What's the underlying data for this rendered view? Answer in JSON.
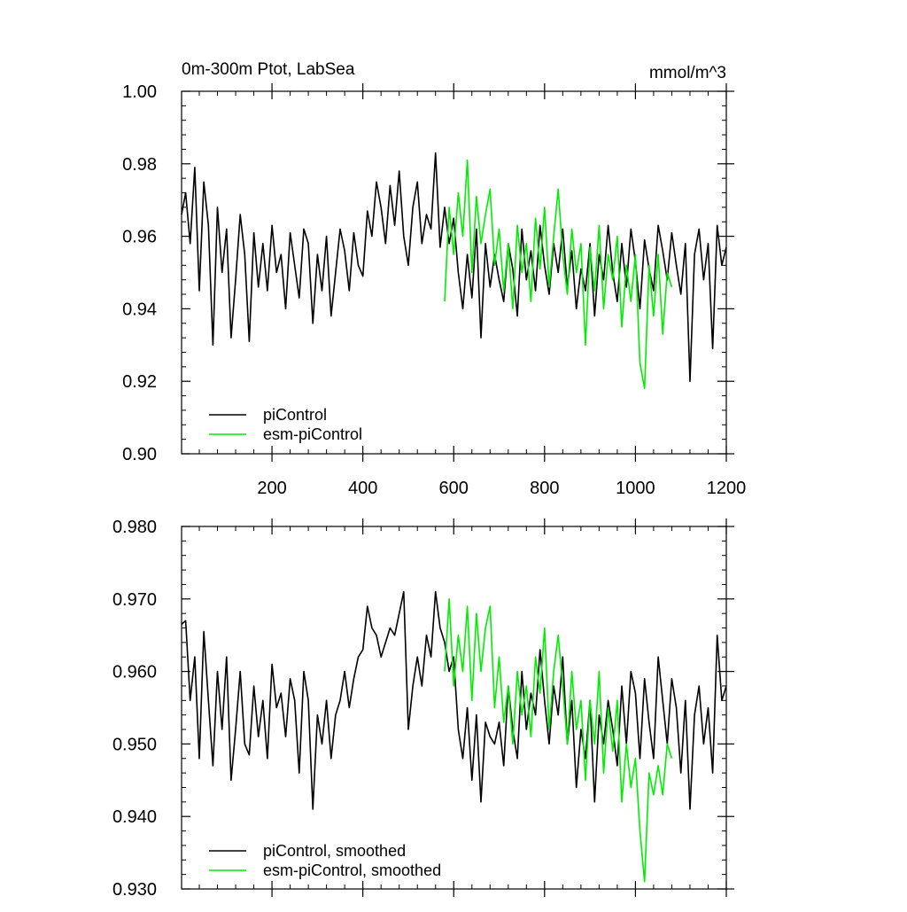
{
  "chart_data": [
    {
      "type": "line",
      "title": "0m-300m Ptot, LabSea",
      "units": "mmol/m^3",
      "xlabel": "",
      "ylabel": "",
      "xlim": [
        1,
        1200
      ],
      "ylim": [
        0.9,
        1.0
      ],
      "x_tick_labels": [
        "200",
        "400",
        "600",
        "800",
        "1000",
        "1200"
      ],
      "x_ticks": [
        200,
        400,
        600,
        800,
        1000,
        1200
      ],
      "y_ticks": [
        0.9,
        0.92,
        0.94,
        0.96,
        0.98,
        1.0
      ],
      "y_tick_labels": [
        "0.90",
        "0.92",
        "0.94",
        "0.96",
        "0.98",
        "1.00"
      ],
      "legend": "bottom-left",
      "series": [
        {
          "name": "piControl",
          "color": "#000000",
          "x": [
            1,
            10,
            20,
            30,
            40,
            50,
            60,
            70,
            80,
            90,
            100,
            110,
            120,
            130,
            140,
            150,
            160,
            170,
            180,
            190,
            200,
            210,
            220,
            230,
            240,
            250,
            260,
            270,
            280,
            290,
            300,
            310,
            320,
            330,
            340,
            350,
            360,
            370,
            380,
            390,
            400,
            410,
            420,
            430,
            440,
            450,
            460,
            470,
            480,
            490,
            500,
            510,
            520,
            530,
            540,
            550,
            560,
            570,
            580,
            590,
            600,
            610,
            620,
            630,
            640,
            650,
            660,
            670,
            680,
            690,
            700,
            710,
            720,
            730,
            740,
            750,
            760,
            770,
            780,
            790,
            800,
            810,
            820,
            830,
            840,
            850,
            860,
            870,
            880,
            890,
            900,
            910,
            920,
            930,
            940,
            950,
            960,
            970,
            980,
            990,
            1000,
            1010,
            1020,
            1030,
            1040,
            1050,
            1060,
            1070,
            1080,
            1090,
            1100,
            1110,
            1120,
            1130,
            1140,
            1150,
            1160,
            1170,
            1180,
            1190,
            1200
          ],
          "y": [
            0.966,
            0.972,
            0.958,
            0.979,
            0.945,
            0.975,
            0.963,
            0.93,
            0.968,
            0.95,
            0.962,
            0.932,
            0.948,
            0.966,
            0.955,
            0.931,
            0.961,
            0.946,
            0.958,
            0.945,
            0.963,
            0.95,
            0.955,
            0.94,
            0.961,
            0.952,
            0.943,
            0.962,
            0.958,
            0.936,
            0.955,
            0.945,
            0.96,
            0.938,
            0.95,
            0.962,
            0.956,
            0.945,
            0.961,
            0.952,
            0.949,
            0.967,
            0.96,
            0.975,
            0.968,
            0.958,
            0.974,
            0.963,
            0.978,
            0.96,
            0.952,
            0.968,
            0.975,
            0.958,
            0.966,
            0.962,
            0.983,
            0.957,
            0.968,
            0.958,
            0.965,
            0.95,
            0.94,
            0.955,
            0.943,
            0.962,
            0.932,
            0.958,
            0.946,
            0.955,
            0.948,
            0.942,
            0.958,
            0.951,
            0.938,
            0.962,
            0.948,
            0.956,
            0.945,
            0.963,
            0.952,
            0.944,
            0.958,
            0.95,
            0.962,
            0.946,
            0.956,
            0.94,
            0.951,
            0.945,
            0.958,
            0.938,
            0.955,
            0.948,
            0.963,
            0.95,
            0.942,
            0.958,
            0.946,
            0.962,
            0.953,
            0.94,
            0.959,
            0.951,
            0.945,
            0.963,
            0.956,
            0.948,
            0.961,
            0.952,
            0.944,
            0.958,
            0.92,
            0.955,
            0.962,
            0.948,
            0.958,
            0.929,
            0.963,
            0.952,
            0.957
          ]
        },
        {
          "name": "esm-piControl",
          "color": "#00ee00",
          "x": [
            580,
            590,
            600,
            610,
            620,
            630,
            640,
            650,
            660,
            670,
            680,
            690,
            700,
            710,
            720,
            730,
            740,
            750,
            760,
            770,
            780,
            790,
            800,
            810,
            820,
            830,
            840,
            850,
            860,
            870,
            880,
            890,
            900,
            910,
            920,
            930,
            940,
            950,
            960,
            970,
            980,
            990,
            1000,
            1010,
            1020,
            1030,
            1040,
            1050,
            1060,
            1070,
            1080
          ],
          "y": [
            0.942,
            0.968,
            0.955,
            0.972,
            0.96,
            0.981,
            0.95,
            0.971,
            0.958,
            0.966,
            0.973,
            0.952,
            0.962,
            0.945,
            0.958,
            0.94,
            0.963,
            0.95,
            0.958,
            0.942,
            0.965,
            0.951,
            0.968,
            0.946,
            0.96,
            0.973,
            0.955,
            0.944,
            0.962,
            0.95,
            0.958,
            0.93,
            0.957,
            0.945,
            0.963,
            0.94,
            0.955,
            0.948,
            0.96,
            0.935,
            0.952,
            0.942,
            0.955,
            0.925,
            0.918,
            0.952,
            0.938,
            0.955,
            0.933,
            0.95,
            0.946
          ]
        }
      ]
    },
    {
      "type": "line",
      "title": "",
      "xlabel": "",
      "ylabel": "",
      "xlim": [
        1,
        1200
      ],
      "ylim": [
        0.93,
        0.98
      ],
      "x_ticks": [
        200,
        400,
        600,
        800,
        1000,
        1200
      ],
      "y_ticks": [
        0.93,
        0.94,
        0.95,
        0.96,
        0.97,
        0.98
      ],
      "y_tick_labels": [
        "0.930",
        "0.940",
        "0.950",
        "0.960",
        "0.970",
        "0.980"
      ],
      "legend": "bottom-left",
      "series": [
        {
          "name": "piControl, smoothed",
          "color": "#000000",
          "x": [
            1,
            10,
            20,
            30,
            40,
            50,
            60,
            70,
            80,
            90,
            100,
            110,
            120,
            130,
            140,
            150,
            160,
            170,
            180,
            190,
            200,
            210,
            220,
            230,
            240,
            250,
            260,
            270,
            280,
            290,
            300,
            310,
            320,
            330,
            340,
            350,
            360,
            370,
            380,
            390,
            400,
            410,
            420,
            430,
            440,
            450,
            460,
            470,
            480,
            490,
            500,
            510,
            520,
            530,
            540,
            550,
            560,
            570,
            580,
            590,
            600,
            610,
            620,
            630,
            640,
            650,
            660,
            670,
            680,
            690,
            700,
            710,
            720,
            730,
            740,
            750,
            760,
            770,
            780,
            790,
            800,
            810,
            820,
            830,
            840,
            850,
            860,
            870,
            880,
            890,
            900,
            910,
            920,
            930,
            940,
            950,
            960,
            970,
            980,
            990,
            1000,
            1010,
            1020,
            1030,
            1040,
            1050,
            1060,
            1070,
            1080,
            1090,
            1100,
            1110,
            1120,
            1130,
            1140,
            1150,
            1160,
            1170,
            1180,
            1190,
            1200
          ],
          "y": [
            0.9665,
            0.967,
            0.956,
            0.962,
            0.948,
            0.9655,
            0.956,
            0.947,
            0.96,
            0.952,
            0.962,
            0.945,
            0.952,
            0.96,
            0.95,
            0.9485,
            0.958,
            0.951,
            0.956,
            0.948,
            0.961,
            0.955,
            0.957,
            0.951,
            0.959,
            0.956,
            0.946,
            0.96,
            0.956,
            0.941,
            0.954,
            0.95,
            0.956,
            0.948,
            0.954,
            0.956,
            0.96,
            0.955,
            0.959,
            0.962,
            0.963,
            0.969,
            0.966,
            0.965,
            0.962,
            0.964,
            0.966,
            0.965,
            0.968,
            0.971,
            0.952,
            0.958,
            0.962,
            0.958,
            0.965,
            0.962,
            0.971,
            0.966,
            0.964,
            0.96,
            0.962,
            0.952,
            0.948,
            0.955,
            0.945,
            0.954,
            0.942,
            0.953,
            0.951,
            0.95,
            0.953,
            0.947,
            0.958,
            0.952,
            0.948,
            0.96,
            0.952,
            0.957,
            0.954,
            0.963,
            0.956,
            0.95,
            0.958,
            0.954,
            0.962,
            0.95,
            0.956,
            0.944,
            0.952,
            0.948,
            0.956,
            0.942,
            0.954,
            0.95,
            0.956,
            0.952,
            0.947,
            0.958,
            0.95,
            0.96,
            0.957,
            0.948,
            0.959,
            0.953,
            0.948,
            0.962,
            0.956,
            0.95,
            0.959,
            0.955,
            0.946,
            0.956,
            0.941,
            0.954,
            0.958,
            0.95,
            0.955,
            0.946,
            0.965,
            0.956,
            0.958
          ]
        },
        {
          "name": "esm-piControl, smoothed",
          "color": "#00ee00",
          "x": [
            580,
            590,
            600,
            610,
            620,
            630,
            640,
            650,
            660,
            670,
            680,
            690,
            700,
            710,
            720,
            730,
            740,
            750,
            760,
            770,
            780,
            790,
            800,
            810,
            820,
            830,
            840,
            850,
            860,
            870,
            880,
            890,
            900,
            910,
            920,
            930,
            940,
            950,
            960,
            970,
            980,
            990,
            1000,
            1010,
            1020,
            1030,
            1040,
            1050,
            1060,
            1070,
            1080
          ],
          "y": [
            0.96,
            0.97,
            0.958,
            0.965,
            0.96,
            0.969,
            0.956,
            0.968,
            0.96,
            0.966,
            0.969,
            0.955,
            0.962,
            0.953,
            0.958,
            0.95,
            0.96,
            0.954,
            0.958,
            0.951,
            0.962,
            0.957,
            0.966,
            0.952,
            0.96,
            0.965,
            0.958,
            0.95,
            0.96,
            0.952,
            0.956,
            0.945,
            0.956,
            0.95,
            0.96,
            0.946,
            0.955,
            0.949,
            0.956,
            0.942,
            0.95,
            0.944,
            0.948,
            0.938,
            0.931,
            0.946,
            0.943,
            0.947,
            0.943,
            0.95,
            0.948
          ]
        }
      ]
    }
  ]
}
